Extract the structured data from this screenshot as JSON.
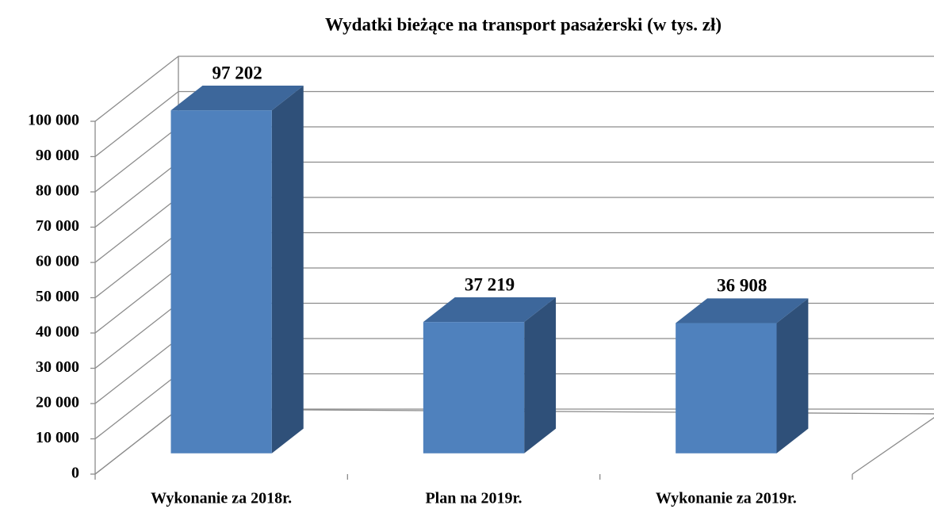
{
  "chart_data": {
    "type": "bar3d",
    "title": "Wydatki bieżące na transport pasażerski (w tys. zł)",
    "categories": [
      "Wykonanie za 2018r.",
      "Plan na 2019r.",
      "Wykonanie za 2019r."
    ],
    "values": [
      97202,
      37219,
      36908
    ],
    "value_labels": [
      "97 202",
      "37 219",
      "36 908"
    ],
    "color": "#4f81bd",
    "ylim": [
      0,
      100000
    ],
    "yticks": [
      0,
      {
        "value": 10000,
        "label": "10 000"
      },
      {
        "value": 20000,
        "label": "20 000"
      },
      {
        "value": 30000,
        "label": "30 000"
      },
      {
        "value": 40000,
        "label": "40 000"
      },
      {
        "value": 50000,
        "label": "50 000"
      },
      {
        "value": 60000,
        "label": "60 000"
      },
      {
        "value": 70000,
        "label": "70 000"
      },
      {
        "value": 80000,
        "label": "80 000"
      },
      {
        "value": 90000,
        "label": "90 000"
      },
      {
        "value": 100000,
        "label": "100 000"
      }
    ],
    "grid": true
  }
}
